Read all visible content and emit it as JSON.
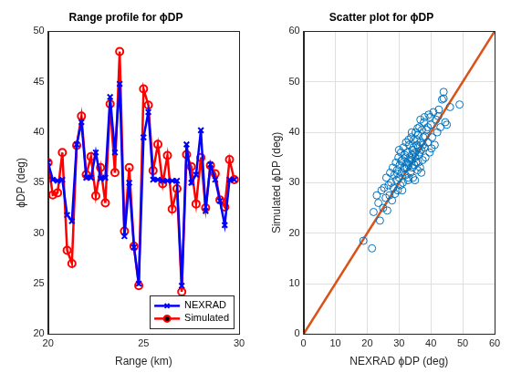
{
  "chart_data": [
    {
      "type": "line",
      "title": "Range profile for ϕDP",
      "x_label": "Range (km)",
      "y_label": "ϕDP (deg)",
      "x": [
        20,
        20.25,
        20.5,
        20.75,
        21,
        21.25,
        21.5,
        21.75,
        22,
        22.25,
        22.5,
        22.75,
        23,
        23.25,
        23.5,
        23.75,
        24,
        24.25,
        24.5,
        24.75,
        25,
        25.25,
        25.5,
        25.75,
        26,
        26.25,
        26.5,
        26.75,
        27,
        27.25,
        27.5,
        27.75,
        28,
        28.25,
        28.5,
        28.75,
        29,
        29.25,
        29.5,
        29.75
      ],
      "series": [
        {
          "name": "NEXRAD",
          "color": "#0000ff",
          "marker": "x",
          "line_style": "solid",
          "values": [
            37,
            35.3,
            35.2,
            35.3,
            31.8,
            31.2,
            38.8,
            41,
            35.5,
            35.5,
            38,
            35.4,
            35.5,
            43.5,
            38,
            44.8,
            29.7,
            35,
            28.6,
            25,
            39.5,
            42,
            35.3,
            35.3,
            35.2,
            35.2,
            35.2,
            35.2,
            24.8,
            38.8,
            35,
            35.8,
            40.2,
            32.2,
            36.8,
            35.3,
            33.2,
            30.8,
            35.3,
            35.3
          ]
        },
        {
          "name": "Simulated",
          "color": "#ff0000",
          "marker": "circle",
          "line_style": "solid",
          "values": [
            37,
            33.8,
            34,
            38,
            28.3,
            27,
            38.7,
            41.6,
            35.8,
            37.6,
            33.7,
            36.5,
            33,
            42.8,
            36,
            48,
            30.2,
            36.5,
            28.7,
            24.8,
            44.3,
            42.7,
            36.2,
            38.8,
            34.9,
            37.7,
            32.4,
            34.4,
            24.2,
            37.8,
            36.6,
            32.9,
            37.5,
            32.5,
            36.7,
            35.9,
            33.3,
            32.6,
            37.3,
            35.3
          ]
        }
      ],
      "xlim": [
        20,
        30
      ],
      "xticks": [
        20,
        25,
        30
      ],
      "ylim": [
        20,
        50
      ],
      "yticks": [
        20,
        25,
        30,
        35,
        40,
        45,
        50
      ],
      "grid": false,
      "legend": "lower right"
    },
    {
      "type": "scatter",
      "title": "Scatter plot for ϕDP",
      "x_label": "NEXRAD ϕDP (deg)",
      "y_label": "Simulated ϕDP (deg)",
      "series": [
        {
          "color": "#0072bd",
          "marker": "circle",
          "x": [
            18.8,
            21.5,
            22,
            23,
            23.5,
            24,
            24.5,
            25,
            25.3,
            25.8,
            26,
            26.3,
            26.7,
            27,
            27.2,
            27.5,
            27.8,
            28,
            28.2,
            28.5,
            28.7,
            29,
            29.2,
            29.4,
            29.6,
            29.8,
            30,
            30.2,
            30.4,
            30.6,
            30.8,
            31,
            31.2,
            31.4,
            31.6,
            31.8,
            32,
            32.2,
            32.4,
            32.6,
            32.8,
            33,
            33.2,
            33.4,
            33.6,
            33.8,
            34,
            34.2,
            34.4,
            34.6,
            34.8,
            35,
            35.2,
            35.4,
            35.6,
            35.8,
            36,
            36.2,
            36.4,
            36.6,
            36.8,
            37,
            37.2,
            37.4,
            37.6,
            37.8,
            38,
            38.3,
            38.6,
            39,
            39.3,
            39.6,
            40,
            40.4,
            40.8,
            41.2,
            41.6,
            42,
            42.5,
            43,
            43.5,
            44,
            44.5,
            45,
            46,
            49,
            34,
            35,
            36,
            33,
            32,
            31,
            30,
            37,
            38,
            39,
            36,
            35,
            34,
            33,
            34.5,
            35.5,
            36.5,
            37.5,
            32.5,
            33.5,
            34.2,
            35.8,
            36.7,
            38.2,
            31.7,
            30.7,
            29.5,
            39.8,
            40.2,
            42.3,
            44
          ],
          "values": [
            18.5,
            17,
            24.2,
            27.5,
            26,
            22.5,
            28.5,
            25,
            29,
            27,
            31,
            24.5,
            29.5,
            27.5,
            32,
            30,
            26.5,
            33,
            29,
            31.5,
            27.8,
            34,
            30.5,
            32.5,
            28.5,
            35,
            31,
            33.5,
            29.5,
            36,
            32,
            34.5,
            30,
            37,
            33,
            35.5,
            31.5,
            38,
            34,
            36,
            30.5,
            33.5,
            37.5,
            35,
            32,
            39,
            34.5,
            36.5,
            31,
            38.5,
            33.5,
            36,
            40,
            34,
            37.5,
            32.5,
            39.5,
            35.5,
            41,
            33,
            38,
            36.5,
            40.5,
            34.5,
            39,
            42,
            37,
            35,
            40.5,
            38,
            43.5,
            36,
            41.5,
            39,
            44,
            37.5,
            42.5,
            40,
            44.5,
            41,
            46.5,
            48,
            42,
            41.5,
            45,
            45.5,
            40,
            30.5,
            34,
            38.5,
            35,
            28.5,
            36.5,
            32,
            43,
            41,
            37,
            35,
            35.5,
            31,
            37,
            38.5,
            36,
            37.5,
            33,
            34.5,
            33,
            40.8,
            42.5,
            39.2,
            32.8,
            34.3,
            31.8,
            43,
            36.8,
            43.2,
            46.7
          ]
        },
        {
          "type": "line",
          "color": "#d95319",
          "line_style": "solid",
          "x": [
            0,
            60
          ],
          "values": [
            0,
            60
          ]
        }
      ],
      "xlim": [
        0,
        60
      ],
      "xticks": [
        0,
        10,
        20,
        30,
        40,
        50,
        60
      ],
      "ylim": [
        0,
        60
      ],
      "yticks": [
        0,
        10,
        20,
        30,
        40,
        50,
        60
      ],
      "grid": true
    }
  ]
}
